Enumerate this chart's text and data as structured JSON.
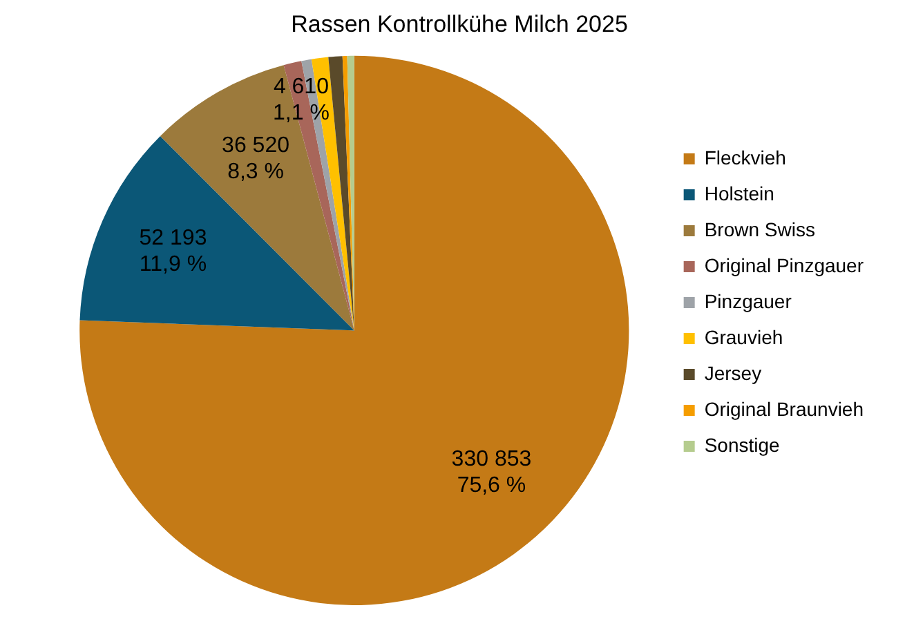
{
  "chart_data": {
    "type": "pie",
    "title": "Rassen Kontrollkühe Milch 2025",
    "categories": [
      "Fleckvieh",
      "Holstein",
      "Brown Swiss",
      "Original Pinzgauer",
      "Pinzgauer",
      "Grauvieh",
      "Jersey",
      "Original Braunvieh",
      "Sonstige"
    ],
    "values": [
      330853,
      52193,
      36520,
      4610,
      2600,
      4300,
      3600,
      1200,
      1800
    ],
    "value_labels": [
      "330 853\n75,6 %",
      "52 193\n11,9 %",
      "36 520\n8,3 %",
      "4 610\n1,1 %",
      null,
      null,
      null,
      null,
      null
    ],
    "colors": [
      "#c47a16",
      "#0b5777",
      "#9c7a3c",
      "#a8665a",
      "#9ea3a8",
      "#ffc000",
      "#5a4a2a",
      "#f59d00",
      "#b5cc8e"
    ],
    "legend": "right"
  }
}
